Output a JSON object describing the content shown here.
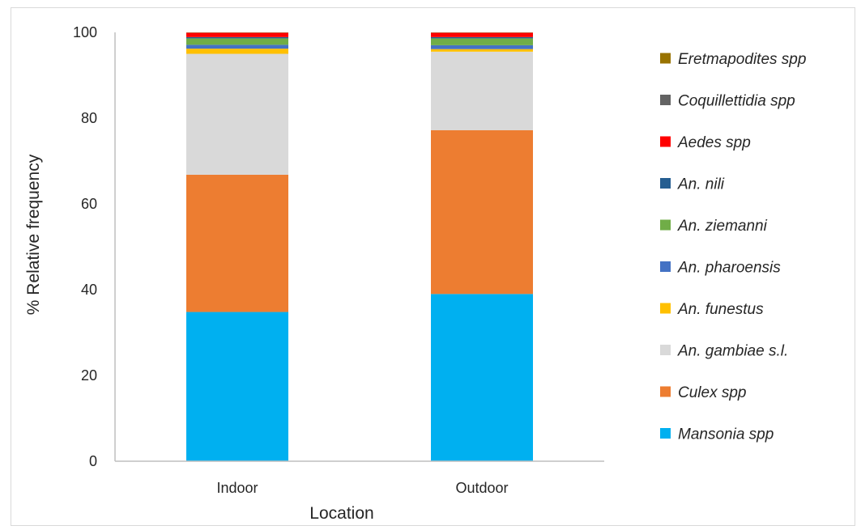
{
  "chart_data": {
    "type": "bar",
    "stacked": true,
    "categories": [
      "Indoor",
      "Outdoor"
    ],
    "xlabel": "Location",
    "ylabel": "% Relative frequency",
    "ylim": [
      0,
      100
    ],
    "yticks": [
      0,
      20,
      40,
      60,
      80,
      100
    ],
    "grid": false,
    "legend_position": "right",
    "series": [
      {
        "name": "Mansonia spp",
        "color": "#00b0f0",
        "values": [
          34.8,
          39.0
        ]
      },
      {
        "name": "Culex spp",
        "color": "#ed7d31",
        "values": [
          32.0,
          38.2
        ]
      },
      {
        "name": "An. gambiae s.l.",
        "color": "#d9d9d9",
        "values": [
          28.2,
          18.3
        ]
      },
      {
        "name": "An. funestus",
        "color": "#ffc000",
        "values": [
          1.2,
          0.6
        ]
      },
      {
        "name": "An. pharoensis",
        "color": "#4472c4",
        "values": [
          0.9,
          0.9
        ]
      },
      {
        "name": "An. ziemanni",
        "color": "#70ad47",
        "values": [
          1.5,
          1.6
        ]
      },
      {
        "name": "An. nili",
        "color": "#255e91",
        "values": [
          0.3,
          0.3
        ]
      },
      {
        "name": "Aedes spp",
        "color": "#ff0000",
        "values": [
          1.0,
          1.0
        ]
      },
      {
        "name": "Coquillettidia spp",
        "color": "#636363",
        "values": [
          0.05,
          0.05
        ]
      },
      {
        "name": "Eretmapodites spp",
        "color": "#997300",
        "values": [
          0.05,
          0.05
        ]
      }
    ]
  }
}
